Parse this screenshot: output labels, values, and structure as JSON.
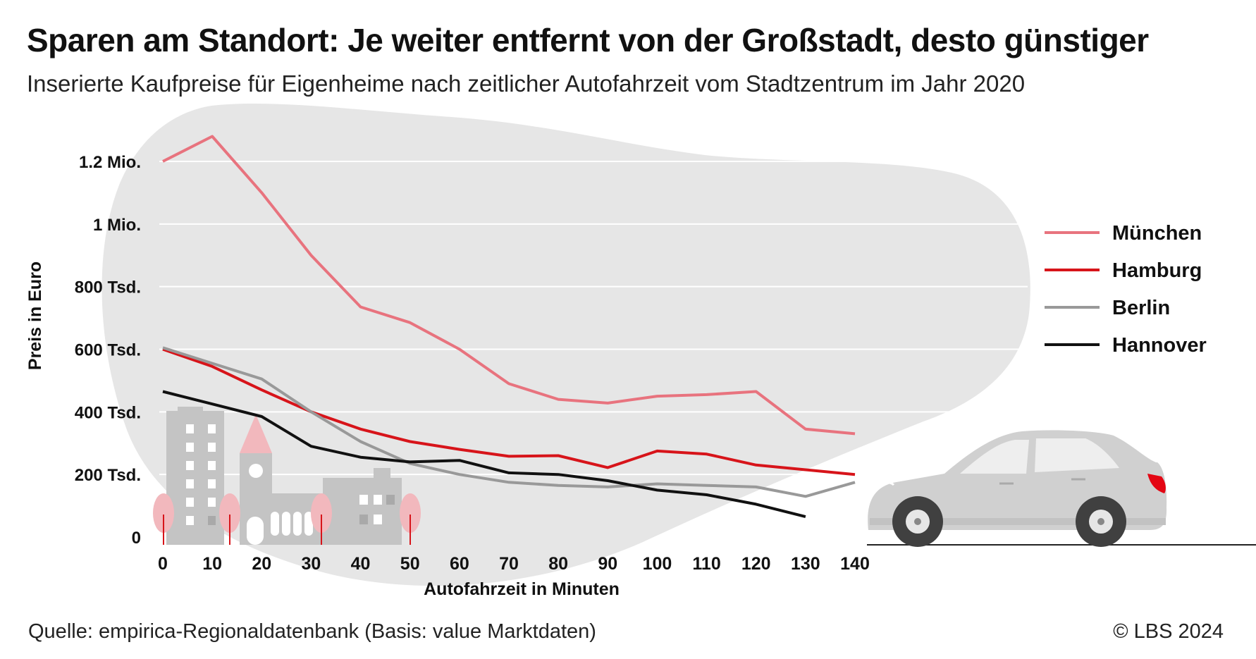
{
  "header": {
    "title": "Sparen am Standort: Je weiter entfernt von der Großstadt, desto günstiger",
    "subtitle": "Inserierte Kaufpreise für Eigenheime nach zeitlicher Autofahrzeit vom Stadtzentrum im Jahr 2020"
  },
  "footer": {
    "source": "Quelle: empirica-Regionaldatenbank (Basis: value Marktdaten)",
    "copyright": "© LBS 2024"
  },
  "chart_data": {
    "type": "line",
    "xlabel": "Autofahrzeit in Minuten",
    "ylabel": "Preis in Euro",
    "xlim": [
      0,
      140
    ],
    "ylim": [
      0,
      1200000
    ],
    "x_ticks": [
      0,
      10,
      20,
      30,
      40,
      50,
      60,
      70,
      80,
      90,
      100,
      110,
      120,
      130,
      140
    ],
    "y_ticks": [
      {
        "value": 0,
        "label": "0"
      },
      {
        "value": 200000,
        "label": "200 Tsd."
      },
      {
        "value": 400000,
        "label": "400 Tsd."
      },
      {
        "value": 600000,
        "label": "600 Tsd."
      },
      {
        "value": 800000,
        "label": "800 Tsd."
      },
      {
        "value": 1000000,
        "label": "1 Mio."
      },
      {
        "value": 1200000,
        "label": "1.2 Mio."
      }
    ],
    "grid": true,
    "legend_position": "right",
    "x": [
      0,
      10,
      20,
      30,
      40,
      50,
      60,
      70,
      80,
      90,
      100,
      110,
      120,
      130,
      140
    ],
    "series": [
      {
        "name": "München",
        "color": "#e8737e",
        "values": [
          1200000,
          1280000,
          1100000,
          900000,
          735000,
          685000,
          600000,
          490000,
          440000,
          428000,
          450000,
          455000,
          465000,
          345000,
          330000
        ]
      },
      {
        "name": "Hamburg",
        "color": "#d7141a",
        "values": [
          600000,
          545000,
          470000,
          400000,
          345000,
          305000,
          280000,
          258000,
          260000,
          222000,
          275000,
          265000,
          230000,
          215000,
          200000
        ]
      },
      {
        "name": "Berlin",
        "color": "#999999",
        "values": [
          605000,
          555000,
          505000,
          400000,
          305000,
          235000,
          200000,
          175000,
          165000,
          160000,
          170000,
          165000,
          160000,
          130000,
          175000
        ]
      },
      {
        "name": "Hannover",
        "color": "#111111",
        "values": [
          465000,
          425000,
          385000,
          290000,
          255000,
          240000,
          245000,
          205000,
          200000,
          180000,
          150000,
          135000,
          105000,
          65000,
          null
        ]
      }
    ]
  },
  "illustration": {
    "left": "city-skyline-icon",
    "right": "car-icon",
    "colors": {
      "blob": "#e6e6e6",
      "building": "#c4c4c4",
      "building_dark": "#a9a9a9",
      "tree": "#f2b8bd",
      "roof": "#f2b8bd",
      "car": "#d0d0d0",
      "car_light": "#e30613"
    }
  }
}
